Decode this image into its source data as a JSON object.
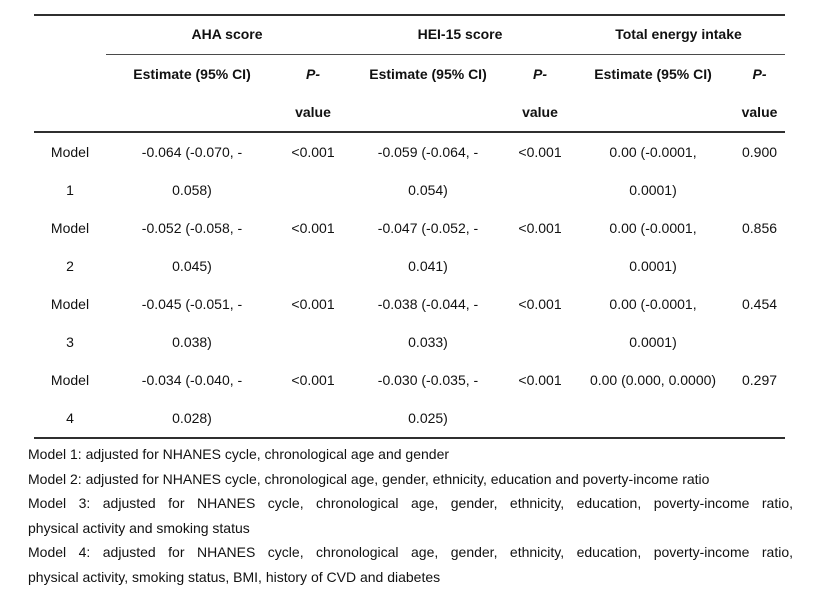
{
  "groups": [
    "AHA score",
    "HEI-15 score",
    "Total energy intake"
  ],
  "header": {
    "estimate": "Estimate (95% CI)",
    "p_line1": "P-",
    "p_line2": "value"
  },
  "rows": [
    {
      "label": [
        "Model",
        "1"
      ],
      "aha": {
        "estimate": [
          "-0.064 (-0.070, -",
          "0.058)"
        ],
        "p": "<0.001"
      },
      "hei": {
        "estimate": [
          "-0.059 (-0.064, -",
          "0.054)"
        ],
        "p": "<0.001"
      },
      "energy": {
        "estimate": [
          "0.00 (-0.0001,",
          "0.0001)"
        ],
        "p": "0.900"
      }
    },
    {
      "label": [
        "Model",
        "2"
      ],
      "aha": {
        "estimate": [
          "-0.052 (-0.058, -",
          "0.045)"
        ],
        "p": "<0.001"
      },
      "hei": {
        "estimate": [
          "-0.047 (-0.052, -",
          "0.041)"
        ],
        "p": "<0.001"
      },
      "energy": {
        "estimate": [
          "0.00 (-0.0001,",
          "0.0001)"
        ],
        "p": "0.856"
      }
    },
    {
      "label": [
        "Model",
        "3"
      ],
      "aha": {
        "estimate": [
          "-0.045 (-0.051, -",
          "0.038)"
        ],
        "p": "<0.001"
      },
      "hei": {
        "estimate": [
          "-0.038 (-0.044, -",
          "0.033)"
        ],
        "p": "<0.001"
      },
      "energy": {
        "estimate": [
          "0.00 (-0.0001,",
          "0.0001)"
        ],
        "p": "0.454"
      }
    },
    {
      "label": [
        "Model",
        "4"
      ],
      "aha": {
        "estimate": [
          "-0.034 (-0.040, -",
          "0.028)"
        ],
        "p": "<0.001"
      },
      "hei": {
        "estimate": [
          "-0.030 (-0.035, -",
          "0.025)"
        ],
        "p": "<0.001"
      },
      "energy": {
        "estimate": [
          "0.00 (0.000, 0.0000)",
          ""
        ],
        "p": "0.297"
      }
    }
  ],
  "footnotes": [
    "Model 1: adjusted for NHANES cycle, chronological age and gender",
    "Model 2: adjusted for NHANES cycle, chronological age, gender, ethnicity, education and poverty-income ratio",
    "Model 3: adjusted for NHANES cycle, chronological age, gender, ethnicity, education, poverty-income ratio,",
    "physical activity and smoking status",
    "Model 4: adjusted for NHANES cycle, chronological age, gender, ethnicity, education, poverty-income ratio,",
    "physical activity, smoking status, BMI, history of CVD and diabetes"
  ]
}
